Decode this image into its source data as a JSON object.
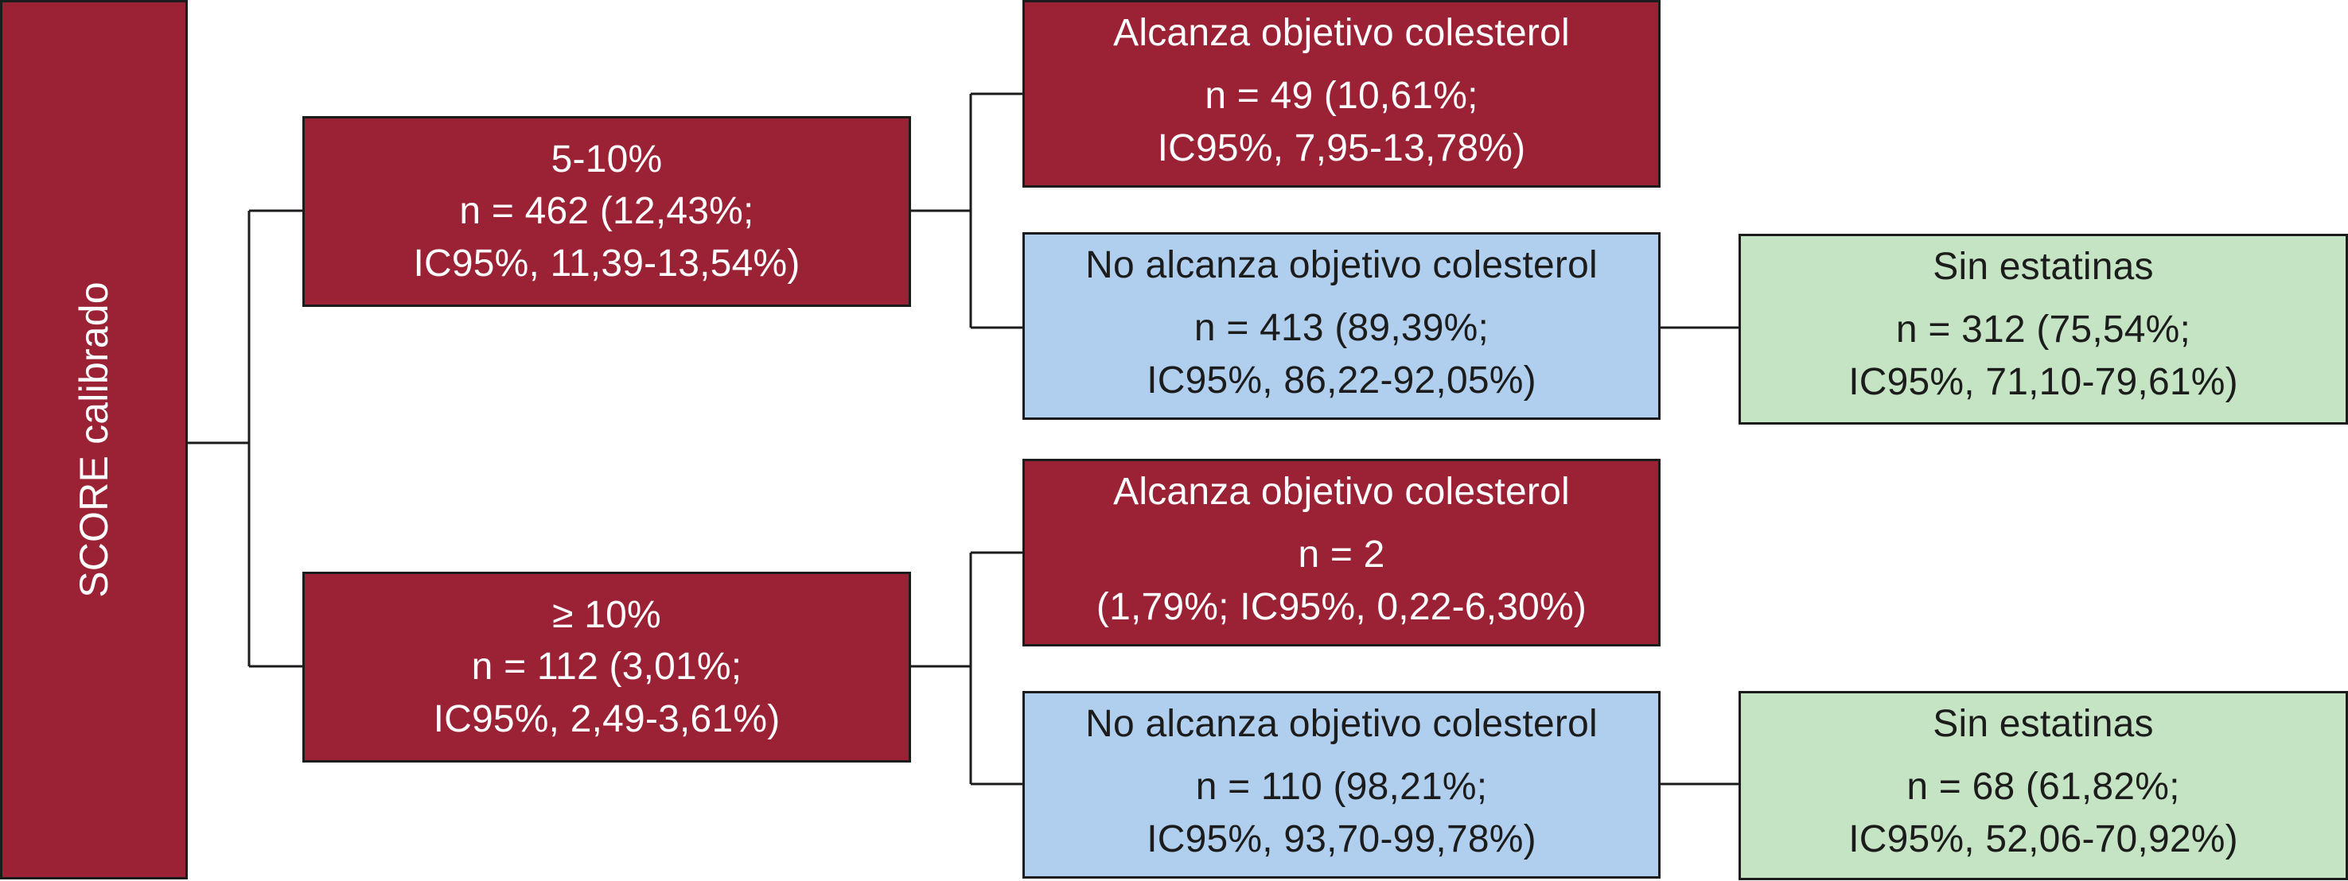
{
  "root": {
    "label": "SCORE calibrado"
  },
  "branches": [
    {
      "id": "5-10",
      "color": "#9b2135",
      "lines": [
        "5-10%",
        "n = 462 (12,43%;",
        "IC95%, 11,39-13,54%)"
      ],
      "children": [
        {
          "color": "#9b2135",
          "title": "Alcanza objetivo colesterol",
          "lines": [
            "n = 49 (10,61%;",
            "IC95%, 7,95-13,78%)"
          ]
        },
        {
          "color": "#b0cfee",
          "title": "No alcanza objetivo colesterol",
          "lines": [
            "n = 413 (89,39%;",
            "IC95%, 86,22-92,05%)"
          ],
          "child": {
            "color": "#c4e4c4",
            "title": "Sin estatinas",
            "lines": [
              "n = 312 (75,54%;",
              "IC95%, 71,10-79,61%)"
            ]
          }
        }
      ]
    },
    {
      "id": "ge10",
      "color": "#9b2135",
      "lines": [
        "≥ 10%",
        "n = 112 (3,01%;",
        "IC95%, 2,49-3,61%)"
      ],
      "children": [
        {
          "color": "#9b2135",
          "title": "Alcanza objetivo colesterol",
          "lines": [
            "n = 2",
            "(1,79%; IC95%, 0,22-6,30%)"
          ]
        },
        {
          "color": "#b0cfee",
          "title": "No alcanza objetivo colesterol",
          "lines": [
            "n = 110 (98,21%;",
            "IC95%, 93,70-99,78%)"
          ],
          "child": {
            "color": "#c4e4c4",
            "title": "Sin estatinas",
            "lines": [
              "n = 68 (61,82%;",
              "IC95%, 52,06-70,92%)"
            ]
          }
        }
      ]
    }
  ]
}
